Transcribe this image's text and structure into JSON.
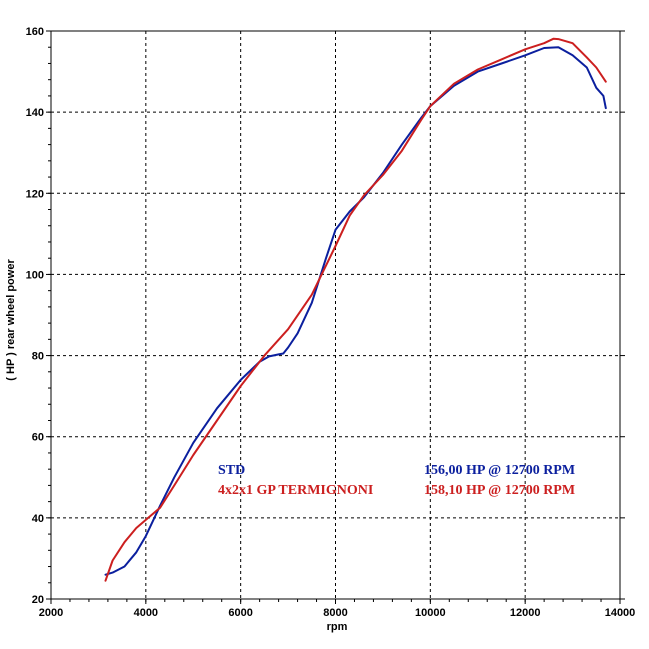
{
  "chart_data": {
    "type": "line",
    "title": "",
    "xlabel": "rpm",
    "ylabel": "( HP )   rear  wheel  power",
    "xlim": [
      2000,
      14000
    ],
    "ylim": [
      20,
      160
    ],
    "xticks": [
      2000,
      4000,
      6000,
      8000,
      10000,
      12000,
      14000
    ],
    "yticks": [
      20,
      40,
      60,
      80,
      100,
      120,
      140,
      160
    ],
    "grid": true,
    "legend_placement": "lower-right-center",
    "series": [
      {
        "name": "STD",
        "summary": "156,00 HP @ 12700 RPM",
        "color": "#0b1f9e",
        "x": [
          3150,
          3300,
          3550,
          3800,
          4000,
          4300,
          4600,
          5000,
          5500,
          6000,
          6400,
          6600,
          6800,
          6900,
          7000,
          7200,
          7500,
          7800,
          8000,
          8300,
          8600,
          9000,
          9400,
          9800,
          10000,
          10500,
          11000,
          11500,
          12000,
          12400,
          12700,
          13000,
          13300,
          13500,
          13650,
          13700
        ],
        "y": [
          26,
          26.5,
          28,
          31.5,
          35.5,
          43,
          50,
          58.5,
          67,
          74,
          78.5,
          79.8,
          80.3,
          80.5,
          82,
          85.5,
          93,
          104,
          111,
          115.5,
          119,
          125,
          132,
          138.5,
          141.5,
          146.5,
          150,
          152,
          154,
          155.8,
          156,
          154,
          151,
          146,
          144,
          141
        ]
      },
      {
        "name": "4x2x1 GP TERMIGNONI",
        "summary": "158,10 HP @ 12700 RPM",
        "color": "#cc1f1f",
        "x": [
          3150,
          3300,
          3550,
          3800,
          4000,
          4300,
          4600,
          5000,
          5500,
          6000,
          6500,
          7000,
          7500,
          8000,
          8300,
          8600,
          9000,
          9400,
          9800,
          10000,
          10500,
          11000,
          11500,
          12000,
          12400,
          12600,
          12700,
          13000,
          13300,
          13500,
          13700
        ],
        "y": [
          24.5,
          29.5,
          34,
          37.5,
          39.5,
          42.5,
          48,
          55.5,
          64,
          72.5,
          80,
          86.5,
          95,
          107,
          114.5,
          119.5,
          124.5,
          130.5,
          138,
          141.5,
          147,
          150.5,
          153,
          155.5,
          157,
          158.1,
          158,
          157,
          153.5,
          151,
          147.5
        ]
      }
    ]
  },
  "colors": {
    "std": "#0b1f9e",
    "termignoni": "#cc1f1f",
    "grid": "#000000"
  }
}
